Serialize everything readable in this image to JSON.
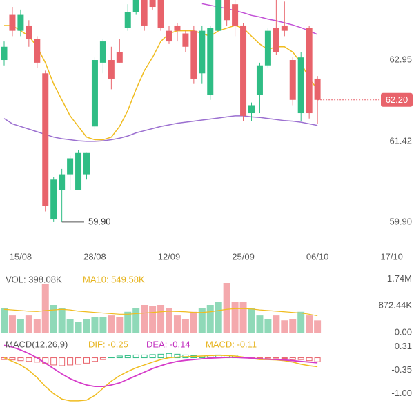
{
  "chart_data": [
    {
      "type": "candlestick",
      "open": [
        62.95,
        63.8,
        63.5,
        63.6,
        63.35,
        62.7,
        59.95,
        60.5,
        60.8,
        60.5,
        60.8,
        61.7,
        62.9,
        62.95,
        63.1,
        63.55,
        63.85,
        64.1,
        64.1,
        64.1,
        63.5,
        63.6,
        63.45,
        63.5,
        62.7,
        62.3,
        63.5,
        64.1,
        64.0,
        63.6,
        61.95,
        62.3,
        62.85,
        63.55,
        63.6,
        62.95,
        61.95,
        63.55,
        62.6
      ],
      "high": [
        63.3,
        63.95,
        63.9,
        63.7,
        63.4,
        62.75,
        60.75,
        60.9,
        61.15,
        61.25,
        61.2,
        63.0,
        63.35,
        63.2,
        63.35,
        64.0,
        64.2,
        64.15,
        64.15,
        64.15,
        63.6,
        63.65,
        63.5,
        63.6,
        63.6,
        63.6,
        64.2,
        64.15,
        64.1,
        63.65,
        62.15,
        62.9,
        63.55,
        64.1,
        64.05,
        63.0,
        63.1,
        63.6,
        62.65
      ],
      "low": [
        62.85,
        63.4,
        63.4,
        63.2,
        62.8,
        60.1,
        59.9,
        59.9,
        60.5,
        60.5,
        60.7,
        61.65,
        62.7,
        62.4,
        62.9,
        63.5,
        63.8,
        63.5,
        63.9,
        63.5,
        63.25,
        63.3,
        63.1,
        62.5,
        62.5,
        62.2,
        63.5,
        63.6,
        63.4,
        61.8,
        61.8,
        61.95,
        62.8,
        63.05,
        63.4,
        62.1,
        61.8,
        61.85,
        61.75
      ],
      "close": [
        63.2,
        63.5,
        63.8,
        63.35,
        62.9,
        60.2,
        60.7,
        60.8,
        61.1,
        61.2,
        61.2,
        62.95,
        63.3,
        62.6,
        62.9,
        63.85,
        64.1,
        63.6,
        63.95,
        63.55,
        63.3,
        63.5,
        63.2,
        62.6,
        63.5,
        63.55,
        64.1,
        63.7,
        63.6,
        61.9,
        62.1,
        62.85,
        63.5,
        63.1,
        63.5,
        62.2,
        63.0,
        61.95,
        62.2
      ],
      "lines": [
        {
          "color": "#f0bc1f",
          "values": [
            63.6,
            63.6,
            63.5,
            63.4,
            63.2,
            62.9,
            62.5,
            62.2,
            61.9,
            61.7,
            61.5,
            61.45,
            61.45,
            61.5,
            61.7,
            62.0,
            62.4,
            62.75,
            63.0,
            63.3,
            63.45,
            63.5,
            63.5,
            63.5,
            63.45,
            63.4,
            63.5,
            63.55,
            63.6,
            63.55,
            63.4,
            63.25,
            63.15,
            63.2,
            63.2,
            63.1,
            62.9,
            62.6,
            62.4
          ]
        },
        {
          "color": "#9b6fd0",
          "values": [
            61.85,
            61.75,
            61.7,
            61.65,
            61.6,
            61.55,
            61.5,
            61.47,
            61.45,
            61.43,
            61.42,
            61.42,
            61.43,
            61.45,
            61.48,
            61.52,
            61.58,
            61.62,
            61.66,
            61.7,
            61.73,
            61.76,
            61.78,
            61.8,
            61.82,
            61.84,
            61.86,
            61.88,
            61.9,
            61.9,
            61.88,
            61.87,
            61.85,
            61.83,
            61.81,
            61.8,
            61.78,
            61.75,
            61.72
          ]
        },
        {
          "color": "#c24fd6",
          "values": [
            null,
            null,
            null,
            null,
            null,
            null,
            null,
            null,
            null,
            null,
            null,
            null,
            null,
            null,
            null,
            null,
            null,
            null,
            null,
            null,
            null,
            null,
            null,
            null,
            64.01,
            63.98,
            63.95,
            63.92,
            63.88,
            63.84,
            63.79,
            63.76,
            63.72,
            63.69,
            63.65,
            63.61,
            63.56,
            63.5,
            63.43
          ]
        }
      ],
      "ylim": [
        59.6,
        64.08
      ],
      "yticks": [
        62.95,
        61.42,
        {
          "value": 59.9,
          "label": "59.90"
        }
      ],
      "xticks": [
        {
          "value": 2,
          "label": "15/08"
        },
        {
          "value": 11,
          "label": "28/08"
        },
        {
          "value": 20,
          "label": "12/09"
        },
        {
          "value": 29,
          "label": "25/09"
        },
        {
          "value": 38,
          "label": "06/10"
        },
        {
          "value": 47,
          "label": "17/10"
        }
      ],
      "last_price": {
        "value": 62.2,
        "label": "62.20"
      },
      "low_mark": {
        "index": 7,
        "value": 59.9,
        "label": "59.90"
      },
      "up_color": "#2fbd85",
      "down_color": "#e8636b"
    },
    {
      "type": "volume",
      "texts": [
        "VOL: 398.08K",
        "MA10: 549.58K"
      ],
      "values": [
        790,
        560,
        450,
        560,
        450,
        1580,
        900,
        790,
        450,
        340,
        450,
        500,
        500,
        560,
        500,
        680,
        790,
        900,
        860,
        900,
        790,
        560,
        450,
        680,
        790,
        900,
        1010,
        1620,
        1010,
        1010,
        790,
        560,
        450,
        560,
        400,
        450,
        680,
        560,
        398.08
      ],
      "ma": [
        760,
        740,
        720,
        700,
        690,
        720,
        740,
        760,
        740,
        700,
        680,
        660,
        640,
        620,
        600,
        600,
        620,
        640,
        660,
        680,
        700,
        690,
        680,
        660,
        660,
        680,
        720,
        760,
        780,
        780,
        770,
        740,
        720,
        700,
        680,
        660,
        640,
        600,
        549.58
      ],
      "ma_color": "#f0bc1f",
      "ylim": [
        0,
        1800
      ],
      "yticks": [
        {
          "value": 1740,
          "label": "1.74M"
        },
        {
          "value": 872.44,
          "label": "872.44K"
        },
        {
          "value": 0,
          "label": "0.00"
        }
      ]
    },
    {
      "type": "macd",
      "texts": [
        "MACD(12,26,9)",
        "DIF: -0.25",
        "DEA: -0.14",
        "MACD: -0.11"
      ],
      "hist": [
        -0.05,
        -0.06,
        -0.08,
        -0.1,
        -0.12,
        -0.15,
        -0.2,
        -0.22,
        -0.2,
        -0.18,
        -0.15,
        -0.1,
        -0.05,
        0.02,
        0.05,
        0.06,
        0.08,
        0.08,
        0.09,
        0.1,
        0.12,
        0.1,
        0.08,
        0.06,
        0.05,
        0.06,
        0.08,
        0.07,
        0.05,
        0.02,
        -0.01,
        -0.02,
        -0.01,
        -0.01,
        -0.02,
        -0.05,
        -0.05,
        -0.08,
        -0.11
      ],
      "dif": [
        0.0,
        -0.1,
        -0.2,
        -0.35,
        -0.55,
        -0.8,
        -1.0,
        -1.15,
        -1.2,
        -1.2,
        -1.18,
        -1.05,
        -0.85,
        -0.65,
        -0.5,
        -0.38,
        -0.28,
        -0.2,
        -0.12,
        -0.05,
        0.0,
        0.02,
        0.03,
        0.04,
        0.05,
        0.06,
        0.07,
        0.06,
        0.05,
        0.02,
        -0.02,
        -0.05,
        -0.05,
        -0.06,
        -0.08,
        -0.12,
        -0.18,
        -0.22,
        -0.25
      ],
      "dea": [
        0.35,
        0.3,
        0.22,
        0.12,
        0.0,
        -0.15,
        -0.3,
        -0.45,
        -0.58,
        -0.68,
        -0.76,
        -0.8,
        -0.8,
        -0.76,
        -0.7,
        -0.6,
        -0.5,
        -0.4,
        -0.3,
        -0.22,
        -0.15,
        -0.1,
        -0.07,
        -0.05,
        -0.03,
        -0.01,
        0.0,
        0.01,
        0.01,
        0.0,
        -0.01,
        -0.03,
        -0.04,
        -0.05,
        -0.06,
        -0.08,
        -0.1,
        -0.12,
        -0.14
      ],
      "dif_color": "#f0bc1f",
      "dea_color": "#d63bc9",
      "ylim": [
        -1.28,
        0.55
      ],
      "yticks": [
        0.31,
        -0.35,
        {
          "value": -1,
          "label": "-1.00"
        }
      ]
    }
  ]
}
